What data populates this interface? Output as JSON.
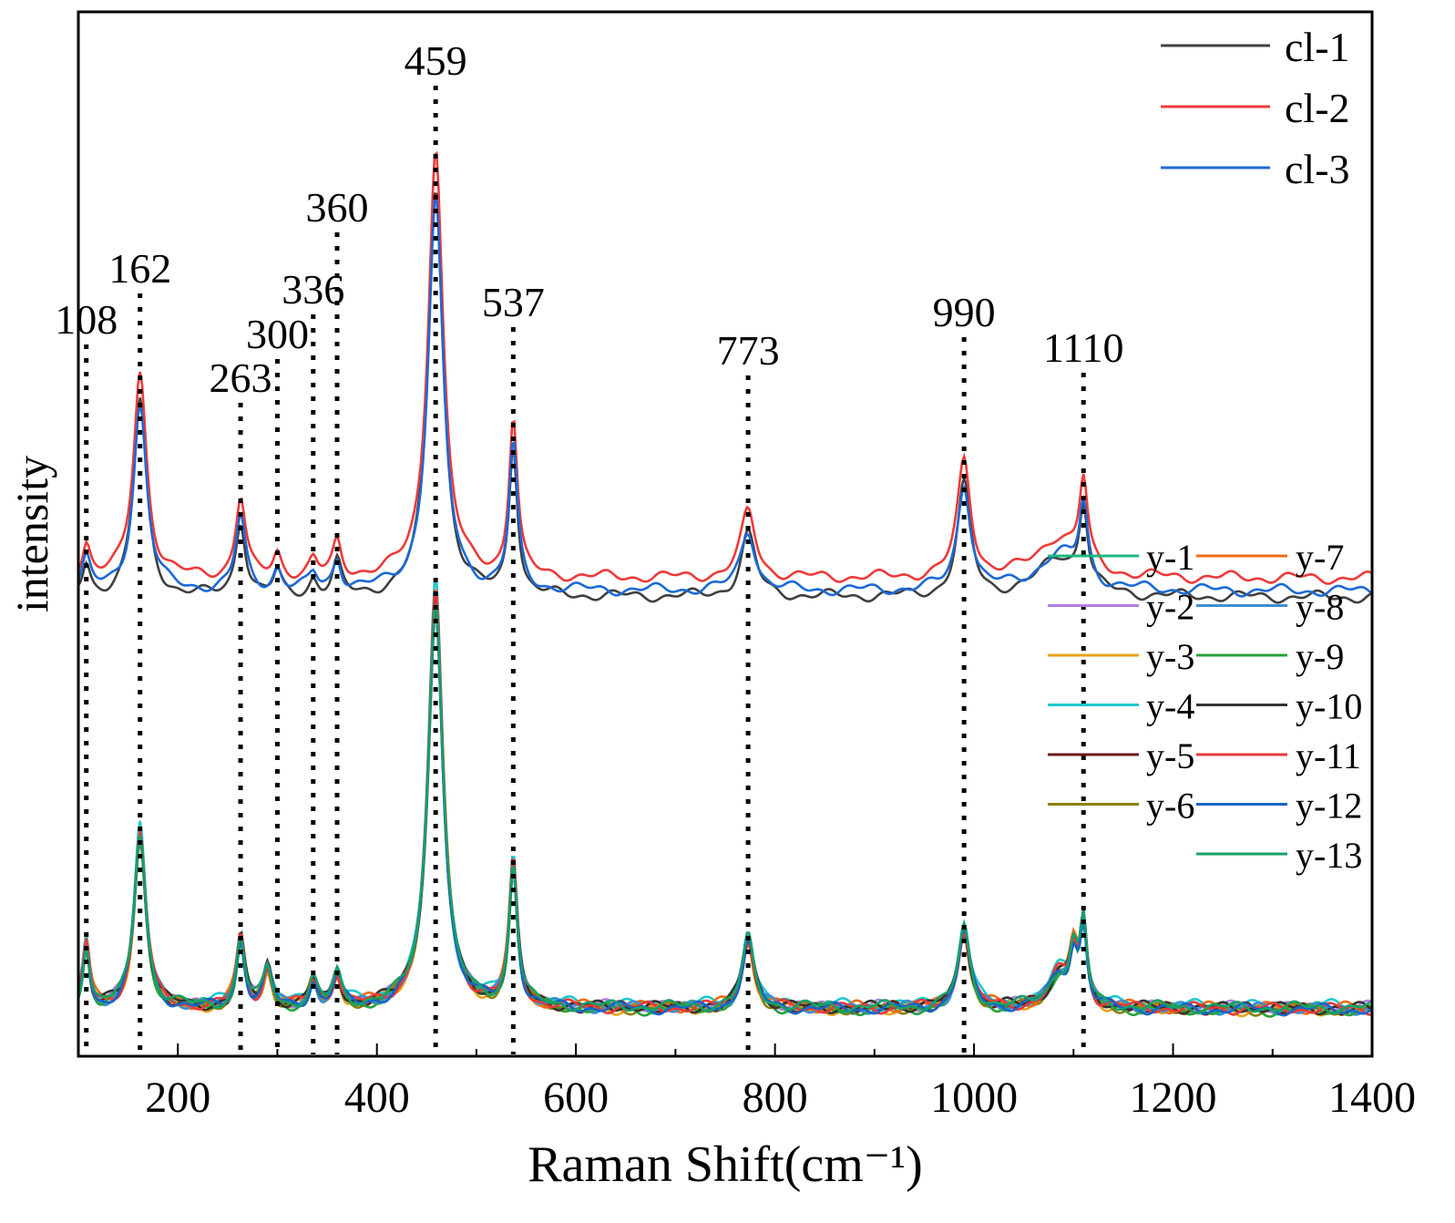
{
  "chart_data": {
    "type": "line",
    "xlabel": "Raman Shift(cm⁻¹)",
    "ylabel": "intensity",
    "xlim": [
      100,
      1400
    ],
    "xticks": [
      200,
      400,
      600,
      800,
      1000,
      1200,
      1400
    ],
    "xtick_labels": [
      "200",
      "400",
      "600",
      "800",
      "1000",
      "1200",
      "1400"
    ],
    "yticks_shown": false,
    "grid": false,
    "peak_annotations": [
      {
        "x": 108,
        "label": "108"
      },
      {
        "x": 162,
        "label": "162"
      },
      {
        "x": 263,
        "label": "263"
      },
      {
        "x": 300,
        "label": "300"
      },
      {
        "x": 336,
        "label": "336"
      },
      {
        "x": 360,
        "label": "360"
      },
      {
        "x": 459,
        "label": "459"
      },
      {
        "x": 537,
        "label": "537"
      },
      {
        "x": 773,
        "label": "773"
      },
      {
        "x": 990,
        "label": "990"
      },
      {
        "x": 1110,
        "label": "1110"
      }
    ],
    "groups": [
      {
        "name": "cl",
        "legend_position": "top-right",
        "baseline_intensity": 1.35,
        "peaks": [
          {
            "x": 108,
            "height": 0.1,
            "width": 5
          },
          {
            "x": 162,
            "height": 0.62,
            "width": 8
          },
          {
            "x": 263,
            "height": 0.24,
            "width": 6
          },
          {
            "x": 300,
            "height": 0.07,
            "width": 5
          },
          {
            "x": 336,
            "height": 0.05,
            "width": 5
          },
          {
            "x": 360,
            "height": 0.1,
            "width": 5
          },
          {
            "x": 459,
            "height": 1.3,
            "width": 9
          },
          {
            "x": 537,
            "height": 0.48,
            "width": 5
          },
          {
            "x": 773,
            "height": 0.2,
            "width": 9
          },
          {
            "x": 990,
            "height": 0.35,
            "width": 8
          },
          {
            "x": 1085,
            "height": 0.12,
            "width": 25
          },
          {
            "x": 1110,
            "height": 0.25,
            "width": 5
          }
        ],
        "series": [
          {
            "name": "cl-1",
            "color": "#404040",
            "offset": 0.0,
            "scale": 1.0
          },
          {
            "name": "cl-2",
            "color": "#ee3a3a",
            "offset": 0.06,
            "scale": 1.05
          },
          {
            "name": "cl-3",
            "color": "#1b6ad6",
            "offset": 0.02,
            "scale": 0.95
          }
        ]
      },
      {
        "name": "y",
        "legend_position": "middle-right",
        "baseline_intensity": 0.05,
        "peaks": [
          {
            "x": 108,
            "height": 0.2,
            "width": 4
          },
          {
            "x": 162,
            "height": 0.55,
            "width": 7
          },
          {
            "x": 263,
            "height": 0.22,
            "width": 5
          },
          {
            "x": 290,
            "height": 0.12,
            "width": 5
          },
          {
            "x": 336,
            "height": 0.08,
            "width": 5
          },
          {
            "x": 360,
            "height": 0.1,
            "width": 5
          },
          {
            "x": 459,
            "height": 1.3,
            "width": 9
          },
          {
            "x": 537,
            "height": 0.45,
            "width": 5
          },
          {
            "x": 773,
            "height": 0.22,
            "width": 7
          },
          {
            "x": 990,
            "height": 0.25,
            "width": 7
          },
          {
            "x": 1085,
            "height": 0.1,
            "width": 12
          },
          {
            "x": 1100,
            "height": 0.15,
            "width": 5
          },
          {
            "x": 1110,
            "height": 0.25,
            "width": 4
          }
        ],
        "series": [
          {
            "name": "y-1",
            "color": "#1db87d",
            "offset": 0.0,
            "scale": 1.0
          },
          {
            "name": "y-2",
            "color": "#b57ee0",
            "offset": 0.005,
            "scale": 0.97
          },
          {
            "name": "y-3",
            "color": "#e8a317",
            "offset": -0.005,
            "scale": 1.0
          },
          {
            "name": "y-4",
            "color": "#1ec8cc",
            "offset": 0.01,
            "scale": 1.03
          },
          {
            "name": "y-5",
            "color": "#6b1c1c",
            "offset": 0.0,
            "scale": 0.98
          },
          {
            "name": "y-6",
            "color": "#8a8200",
            "offset": -0.003,
            "scale": 1.0
          },
          {
            "name": "y-7",
            "color": "#f06c14",
            "offset": 0.003,
            "scale": 1.02
          },
          {
            "name": "y-8",
            "color": "#3b8fd4",
            "offset": 0.0,
            "scale": 0.99
          },
          {
            "name": "y-9",
            "color": "#28a23a",
            "offset": -0.006,
            "scale": 1.0
          },
          {
            "name": "y-10",
            "color": "#333333",
            "offset": 0.002,
            "scale": 1.0
          },
          {
            "name": "y-11",
            "color": "#e8393b",
            "offset": 0.0,
            "scale": 1.01
          },
          {
            "name": "y-12",
            "color": "#1565c8",
            "offset": -0.002,
            "scale": 0.98
          },
          {
            "name": "y-13",
            "color": "#16a06a",
            "offset": 0.004,
            "scale": 1.0
          }
        ]
      }
    ]
  }
}
